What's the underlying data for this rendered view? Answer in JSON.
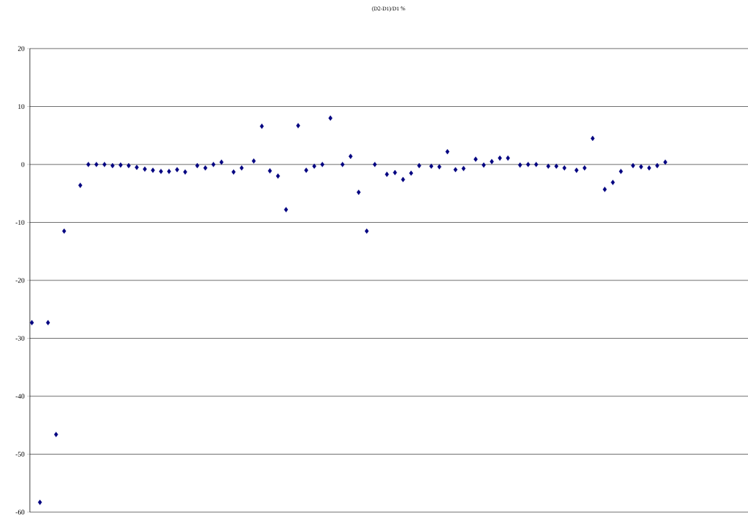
{
  "chart_data": {
    "type": "scatter",
    "title": "(D2-D1)/D1 %",
    "categories": [
      null,
      null,
      null,
      null,
      null,
      null,
      null,
      null,
      null,
      null,
      null,
      null,
      null,
      null,
      null,
      null,
      null,
      null,
      null,
      null,
      null,
      null,
      null,
      null,
      null,
      null,
      null,
      null,
      null,
      null,
      null,
      null,
      null,
      null,
      null,
      null,
      null,
      null,
      null,
      null,
      null,
      null,
      null,
      null,
      null,
      null,
      null,
      null,
      null,
      null,
      null,
      null,
      null,
      null,
      null,
      null,
      null,
      null,
      null,
      null,
      null,
      null,
      null,
      null,
      null,
      null,
      null,
      null,
      null,
      null,
      null,
      null,
      null,
      null,
      null,
      null,
      null,
      null,
      null,
      null,
      null,
      null,
      null,
      null,
      null,
      null,
      null,
      null,
      null,
      null,
      null,
      null,
      null,
      null,
      null,
      null,
      null,
      null,
      null,
      null,
      null,
      null,
      null,
      null,
      null,
      null,
      null,
      null,
      null,
      null,
      null,
      null,
      null,
      null,
      null,
      null,
      null,
      null,
      null,
      null,
      null,
      null,
      null,
      null,
      null,
      null,
      null,
      null,
      null,
      null,
      null,
      null,
      null,
      null,
      null,
      null,
      null,
      null,
      null,
      null,
      null,
      null,
      null,
      null,
      null,
      null,
      null,
      null,
      null,
      null,
      null,
      null,
      null,
      null,
      null,
      null,
      null,
      null,
      null,
      null,
      null,
      null,
      null,
      null,
      null,
      null,
      null,
      null,
      null,
      null,
      null,
      null,
      null,
      null,
      null,
      null,
      null,
      null
    ],
    "values": [
      -27.3,
      null,
      -58.3,
      null,
      -27.3,
      null,
      -46.6,
      null,
      -11.5,
      null,
      null,
      null,
      -3.6,
      null,
      0,
      null,
      0,
      null,
      0,
      null,
      -0.2,
      null,
      -0.1,
      null,
      -0.2,
      null,
      -0.5,
      null,
      -0.8,
      null,
      -1.0,
      null,
      -1.2,
      null,
      -1.2,
      null,
      -0.9,
      null,
      -1.3,
      null,
      null,
      -0.2,
      null,
      -0.6,
      null,
      0,
      null,
      0.4,
      null,
      null,
      -1.3,
      null,
      -0.6,
      null,
      null,
      0.6,
      null,
      6.6,
      null,
      -1.1,
      null,
      -2.0,
      null,
      -7.8,
      null,
      null,
      6.7,
      null,
      -1.0,
      null,
      -0.3,
      null,
      0,
      null,
      8.0,
      null,
      null,
      0,
      null,
      1.4,
      null,
      -4.8,
      null,
      -11.5,
      null,
      0,
      null,
      null,
      -1.7,
      null,
      -1.4,
      null,
      -2.6,
      null,
      -1.5,
      null,
      -0.2,
      null,
      null,
      -0.3,
      null,
      -0.4,
      null,
      2.2,
      null,
      -0.9,
      null,
      -0.7,
      null,
      null,
      0.9,
      null,
      -0.1,
      null,
      0.5,
      null,
      1.1,
      null,
      1.1,
      null,
      null,
      -0.1,
      null,
      0,
      null,
      0,
      null,
      null,
      -0.3,
      null,
      -0.3,
      null,
      -0.6,
      null,
      null,
      -1.0,
      null,
      -0.6,
      null,
      4.5,
      null,
      null,
      -4.3,
      null,
      -3.1,
      null,
      -1.2,
      null,
      null,
      -0.2,
      null,
      -0.4,
      null,
      -0.6,
      null,
      -0.2,
      null,
      0.4,
      null,
      null,
      null,
      null,
      null,
      null,
      null,
      null,
      null,
      null,
      null,
      null,
      null,
      null,
      null,
      null,
      null,
      null,
      null,
      null
    ],
    "color": "#000080",
    "marker": "diamond",
    "ylim": [
      -60,
      20
    ],
    "yticks": [
      -60,
      -50,
      -40,
      -30,
      -20,
      -10,
      0,
      10,
      20
    ],
    "grid": "y",
    "tick_labels": "y"
  }
}
